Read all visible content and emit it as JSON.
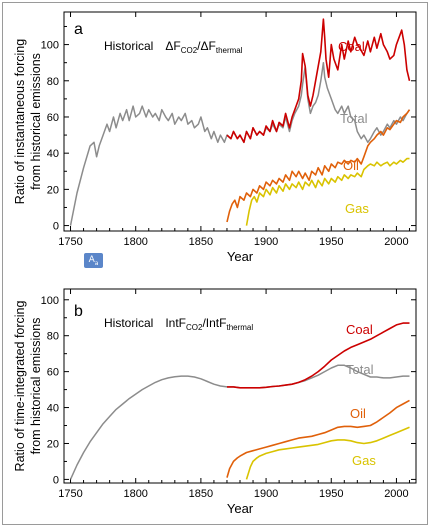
{
  "series_colors": {
    "Coal": "#cc0000",
    "Total": "#8c8c8c",
    "Oil": "#e0600a",
    "Gas": "#d9c300"
  },
  "badge_icon": "translate-icon",
  "chart_data": [
    {
      "type": "line",
      "panel_letter": "a",
      "title_prefix": "Historical",
      "title_main": "ΔF",
      "title_sub1": "CO2",
      "title_mid": "/ΔF",
      "title_sub2": "thermal",
      "ylabel_line1": "Ratio of instantaneous forcing",
      "ylabel_line2": "from historical emissions",
      "xlabel": "Year",
      "xlim": [
        1745,
        2015
      ],
      "ylim": [
        -3,
        118
      ],
      "x_ticks": [
        1750,
        1800,
        1850,
        1900,
        1950,
        2000
      ],
      "y_ticks": [
        0,
        20,
        40,
        60,
        80,
        100
      ],
      "series": [
        {
          "name": "Total",
          "x": [
            1750,
            1755,
            1760,
            1765,
            1768,
            1770,
            1772,
            1775,
            1778,
            1780,
            1783,
            1785,
            1788,
            1790,
            1793,
            1795,
            1798,
            1800,
            1803,
            1805,
            1808,
            1810,
            1813,
            1815,
            1818,
            1820,
            1823,
            1825,
            1828,
            1830,
            1833,
            1835,
            1838,
            1840,
            1843,
            1845,
            1848,
            1850,
            1853,
            1855,
            1858,
            1860,
            1863,
            1865,
            1868,
            1870,
            1873,
            1875,
            1878,
            1880,
            1883,
            1885,
            1888,
            1890,
            1893,
            1895,
            1898,
            1900,
            1903,
            1905,
            1908,
            1910,
            1913,
            1915,
            1918,
            1920,
            1922,
            1925,
            1927,
            1928,
            1930,
            1932,
            1934,
            1936,
            1938,
            1940,
            1942,
            1944,
            1945,
            1947,
            1950,
            1953,
            1955,
            1958,
            1960,
            1963,
            1965,
            1968,
            1970,
            1973,
            1975,
            1978,
            1980,
            1983,
            1985,
            1988,
            1990,
            1993,
            1995,
            1998,
            2000,
            2003,
            2005,
            2008,
            2010
          ],
          "y": [
            0,
            18,
            32,
            44,
            46,
            38,
            44,
            50,
            56,
            52,
            60,
            54,
            62,
            58,
            64,
            58,
            66,
            60,
            62,
            66,
            60,
            64,
            60,
            62,
            58,
            64,
            60,
            58,
            62,
            56,
            60,
            58,
            62,
            56,
            58,
            54,
            56,
            60,
            52,
            54,
            48,
            52,
            46,
            50,
            46,
            50,
            48,
            52,
            48,
            50,
            46,
            52,
            48,
            54,
            50,
            52,
            50,
            54,
            52,
            56,
            52,
            56,
            54,
            60,
            52,
            58,
            62,
            66,
            72,
            78,
            88,
            70,
            62,
            66,
            68,
            72,
            80,
            90,
            82,
            76,
            70,
            64,
            62,
            66,
            62,
            66,
            60,
            58,
            52,
            48,
            50,
            46,
            48,
            52,
            54,
            50,
            52,
            56,
            54,
            58,
            56,
            60,
            58,
            62,
            64
          ]
        },
        {
          "name": "Coal",
          "x": [
            1870,
            1873,
            1875,
            1878,
            1880,
            1883,
            1885,
            1888,
            1890,
            1893,
            1895,
            1898,
            1900,
            1903,
            1905,
            1908,
            1910,
            1913,
            1915,
            1918,
            1920,
            1922,
            1925,
            1927,
            1928,
            1930,
            1932,
            1934,
            1936,
            1938,
            1940,
            1942,
            1944,
            1945,
            1946,
            1948,
            1950,
            1952,
            1955,
            1958,
            1960,
            1963,
            1965,
            1968,
            1970,
            1972,
            1975,
            1978,
            1980,
            1983,
            1985,
            1988,
            1990,
            1993,
            1995,
            1998,
            2000,
            2002,
            2004,
            2006,
            2008,
            2010
          ],
          "y": [
            50,
            48,
            52,
            48,
            50,
            46,
            52,
            48,
            54,
            50,
            52,
            50,
            55,
            52,
            58,
            52,
            57,
            55,
            62,
            54,
            60,
            64,
            70,
            80,
            95,
            88,
            72,
            66,
            72,
            80,
            88,
            96,
            114,
            104,
            92,
            82,
            100,
            92,
            86,
            100,
            92,
            102,
            96,
            104,
            100,
            98,
            94,
            102,
            96,
            104,
            98,
            106,
            100,
            96,
            92,
            94,
            100,
            104,
            108,
            100,
            86,
            80
          ]
        },
        {
          "name": "Oil",
          "x": [
            1870,
            1872,
            1874,
            1876,
            1878,
            1880,
            1883,
            1885,
            1888,
            1890,
            1893,
            1895,
            1898,
            1900,
            1903,
            1905,
            1908,
            1910,
            1913,
            1915,
            1918,
            1920,
            1923,
            1925,
            1928,
            1930,
            1933,
            1935,
            1938,
            1940,
            1943,
            1945,
            1948,
            1950,
            1953,
            1955,
            1958,
            1960,
            1963,
            1965,
            1968,
            1970,
            1973,
            1975,
            1978,
            1980,
            1983,
            1985,
            1988,
            1990,
            1993,
            1995,
            1998,
            2000,
            2003,
            2005,
            2008,
            2010
          ],
          "y": [
            2,
            8,
            12,
            14,
            10,
            16,
            14,
            18,
            16,
            20,
            18,
            22,
            20,
            24,
            22,
            25,
            23,
            26,
            24,
            28,
            25,
            30,
            27,
            30,
            26,
            29,
            25,
            30,
            28,
            32,
            28,
            33,
            30,
            34,
            32,
            35,
            34,
            36,
            34,
            36,
            35,
            37,
            34,
            38,
            44,
            46,
            48,
            50,
            52,
            50,
            54,
            53,
            56,
            58,
            57,
            60,
            62,
            64
          ]
        },
        {
          "name": "Gas",
          "x": [
            1885,
            1887,
            1889,
            1891,
            1893,
            1895,
            1898,
            1900,
            1903,
            1905,
            1908,
            1910,
            1913,
            1915,
            1918,
            1920,
            1923,
            1925,
            1928,
            1930,
            1933,
            1935,
            1938,
            1940,
            1943,
            1945,
            1948,
            1950,
            1953,
            1955,
            1958,
            1960,
            1963,
            1965,
            1968,
            1970,
            1973,
            1975,
            1978,
            1980,
            1983,
            1985,
            1988,
            1990,
            1993,
            1995,
            1998,
            2000,
            2003,
            2005,
            2008,
            2010
          ],
          "y": [
            0,
            8,
            14,
            16,
            13,
            18,
            16,
            20,
            17,
            21,
            18,
            22,
            19,
            23,
            20,
            23,
            21,
            24,
            20,
            24,
            22,
            25,
            21,
            25,
            22,
            26,
            23,
            26,
            24,
            27,
            25,
            28,
            26,
            28,
            27,
            29,
            27,
            31,
            33,
            34,
            33,
            35,
            33,
            34,
            35,
            33,
            35,
            34,
            36,
            35,
            37,
            37
          ]
        }
      ]
    },
    {
      "type": "line",
      "panel_letter": "b",
      "title_prefix": "Historical",
      "title_main": "IntF",
      "title_sub1": "CO2",
      "title_mid": "/IntF",
      "title_sub2": "thermal",
      "ylabel_line1": "Ratio of time-integrated forcing",
      "ylabel_line2": "from historical emissions",
      "xlabel": "Year",
      "xlim": [
        1745,
        2015
      ],
      "ylim": [
        -2,
        106
      ],
      "x_ticks": [
        1750,
        1800,
        1850,
        1900,
        1950,
        2000
      ],
      "y_ticks": [
        0,
        20,
        40,
        60,
        80,
        100
      ],
      "series": [
        {
          "name": "Total",
          "x": [
            1750,
            1755,
            1760,
            1765,
            1770,
            1775,
            1780,
            1785,
            1790,
            1795,
            1800,
            1805,
            1810,
            1815,
            1820,
            1825,
            1830,
            1835,
            1840,
            1845,
            1850,
            1855,
            1860,
            1865,
            1870,
            1875,
            1880,
            1885,
            1890,
            1895,
            1900,
            1905,
            1910,
            1915,
            1920,
            1925,
            1930,
            1935,
            1940,
            1945,
            1950,
            1955,
            1960,
            1965,
            1970,
            1975,
            1980,
            1985,
            1990,
            1995,
            2000,
            2005,
            2010
          ],
          "y": [
            0,
            8,
            15,
            21,
            26,
            31,
            35,
            39,
            42,
            45,
            47.5,
            50,
            52,
            54,
            55.5,
            56.5,
            57.2,
            57.5,
            57.5,
            57,
            56,
            54.5,
            53,
            52,
            51.5,
            51.5,
            51,
            51,
            51,
            51,
            51.3,
            51.7,
            52,
            52.5,
            53,
            54,
            55,
            56.5,
            58,
            60,
            62,
            63.5,
            63.5,
            62,
            60,
            58.5,
            57,
            57,
            56.5,
            56.5,
            57,
            57.5,
            57.5
          ]
        },
        {
          "name": "Coal",
          "x": [
            1870,
            1875,
            1880,
            1885,
            1890,
            1895,
            1900,
            1905,
            1910,
            1915,
            1920,
            1925,
            1930,
            1935,
            1940,
            1945,
            1950,
            1955,
            1960,
            1965,
            1970,
            1975,
            1980,
            1985,
            1990,
            1995,
            2000,
            2005,
            2010
          ],
          "y": [
            51.5,
            51.5,
            51,
            51,
            51,
            51,
            51.3,
            51.7,
            52,
            52.5,
            53,
            54,
            55.5,
            57.5,
            60,
            63,
            66.5,
            69,
            71.5,
            73.5,
            75,
            76.5,
            78,
            80,
            82,
            84,
            86,
            87,
            87
          ]
        },
        {
          "name": "Oil",
          "x": [
            1870,
            1872,
            1875,
            1878,
            1880,
            1885,
            1890,
            1895,
            1900,
            1905,
            1910,
            1915,
            1920,
            1925,
            1930,
            1935,
            1940,
            1945,
            1950,
            1955,
            1960,
            1965,
            1970,
            1975,
            1980,
            1985,
            1990,
            1995,
            2000,
            2005,
            2010
          ],
          "y": [
            1,
            6,
            10,
            12,
            13,
            15,
            16,
            17,
            18,
            19,
            20,
            21,
            22,
            23,
            23.5,
            24,
            25,
            26,
            27.5,
            29,
            29.5,
            29.5,
            29,
            29.5,
            30,
            32,
            34.5,
            37,
            40,
            42,
            44
          ]
        },
        {
          "name": "Gas",
          "x": [
            1885,
            1888,
            1890,
            1893,
            1895,
            1900,
            1905,
            1910,
            1915,
            1920,
            1925,
            1930,
            1935,
            1940,
            1945,
            1950,
            1955,
            1960,
            1965,
            1970,
            1975,
            1980,
            1985,
            1990,
            1995,
            2000,
            2005,
            2010
          ],
          "y": [
            0,
            7,
            10,
            12,
            13,
            14.5,
            15.5,
            16.5,
            17,
            17.5,
            18,
            18.5,
            19,
            19.5,
            20.5,
            21.5,
            22,
            22,
            21.5,
            20.5,
            20,
            20.5,
            21.5,
            23,
            24.5,
            26,
            27.5,
            29
          ]
        }
      ]
    }
  ]
}
